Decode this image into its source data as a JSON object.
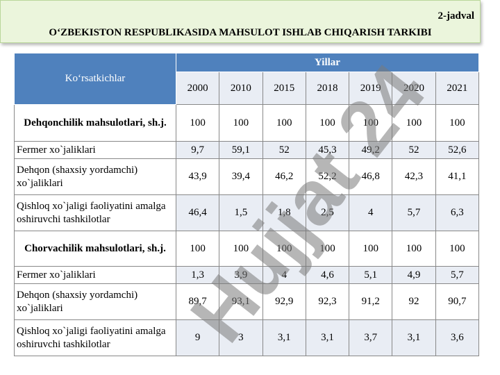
{
  "header": {
    "label": "2-jadval",
    "title": "O‘ZBEKISTON RESPUBLIKASIDA MAHSULOT ISHLAB CHIQARISH TARKIBI"
  },
  "table": {
    "corner": "Ko‘rsatkichlar",
    "group": "Yillar",
    "years": [
      "2000",
      "2010",
      "2015",
      "2018",
      "2019",
      "2020",
      "2021"
    ],
    "rows": [
      {
        "label": "Dehqonchilik mahsulotlari, sh.j.",
        "bold": true,
        "values": [
          "100",
          "100",
          "100",
          "100",
          "100",
          "100",
          "100"
        ]
      },
      {
        "label": "Fermer xo`jaliklari",
        "bold": false,
        "values": [
          "9,7",
          "59,1",
          "52",
          "45,3",
          "49,2",
          "52",
          "52,6"
        ]
      },
      {
        "label": "Dehqon (shaxsiy yordamchi) xo`jaliklari",
        "bold": false,
        "values": [
          "43,9",
          "39,4",
          "46,2",
          "52,2",
          "46,8",
          "42,3",
          "41,1"
        ]
      },
      {
        "label": "Qishloq xo`jaligi faoliyatini amalga oshiruvchi tashkilotlar",
        "bold": false,
        "values": [
          "46,4",
          "1,5",
          "1,8",
          "2,5",
          "4",
          "5,7",
          "6,3"
        ]
      },
      {
        "label": "Chorvachilik mahsulotlari, sh.j.",
        "bold": true,
        "values": [
          "100",
          "100",
          "100",
          "100",
          "100",
          "100",
          "100"
        ]
      },
      {
        "label": "Fermer xo`jaliklari",
        "bold": false,
        "values": [
          "1,3",
          "3,9",
          "4",
          "4,6",
          "5,1",
          "4,9",
          "5,7"
        ]
      },
      {
        "label": "Dehqon (shaxsiy yordamchi) xo`jaliklari",
        "bold": false,
        "values": [
          "89,7",
          "93,1",
          "92,9",
          "92,3",
          "91,2",
          "92",
          "90,7"
        ]
      },
      {
        "label": "Qishloq xo`jaligi faoliyatini amalga oshiruvchi tashkilotlar",
        "bold": false,
        "values": [
          "9",
          "3",
          "3,1",
          "3,1",
          "3,7",
          "3,1",
          "3,6"
        ]
      }
    ]
  },
  "watermark": "Hujjat 24"
}
